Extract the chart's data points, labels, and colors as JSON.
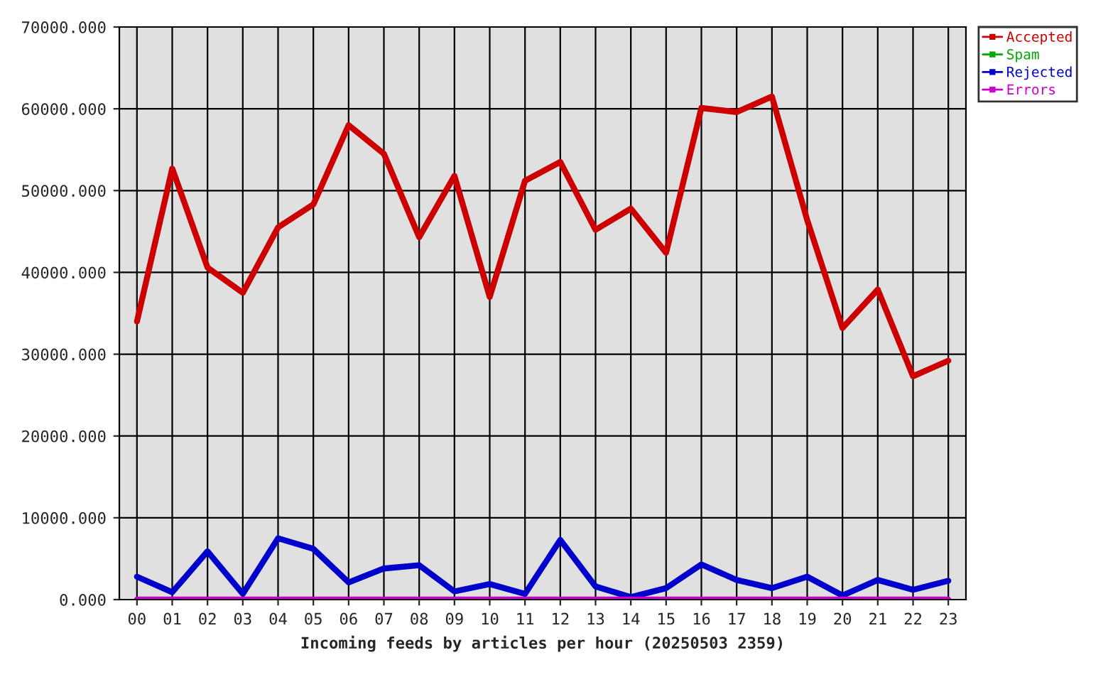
{
  "chart_data": {
    "type": "line",
    "xlabel": "Incoming feeds by articles per hour (20250503 2359)",
    "categories": [
      "00",
      "01",
      "02",
      "03",
      "04",
      "05",
      "06",
      "07",
      "08",
      "09",
      "10",
      "11",
      "12",
      "13",
      "14",
      "15",
      "16",
      "17",
      "18",
      "19",
      "20",
      "21",
      "22",
      "23"
    ],
    "series": [
      {
        "name": "Accepted",
        "color": "#cc0000",
        "values": [
          34000,
          52700,
          40600,
          37500,
          45500,
          48300,
          58000,
          54500,
          44300,
          51800,
          37000,
          51200,
          53500,
          45200,
          47800,
          42400,
          60100,
          59600,
          61500,
          46400,
          33200,
          37900,
          27300,
          29200
        ]
      },
      {
        "name": "Spam",
        "color": "#00aa00",
        "values": [
          null,
          null,
          null,
          null,
          null,
          null,
          null,
          null,
          null,
          null,
          null,
          null,
          null,
          null,
          null,
          null,
          null,
          null,
          null,
          null,
          null,
          null,
          null,
          null
        ]
      },
      {
        "name": "Rejected",
        "color": "#0000cc",
        "values": [
          2800,
          900,
          5900,
          700,
          7500,
          6200,
          2100,
          3800,
          4200,
          1000,
          1900,
          700,
          7300,
          1600,
          300,
          1400,
          4300,
          2400,
          1400,
          2800,
          500,
          2400,
          1200,
          2300
        ]
      },
      {
        "name": "Errors",
        "color": "#cc00cc",
        "values": [
          0,
          0,
          0,
          0,
          0,
          0,
          0,
          0,
          0,
          0,
          0,
          0,
          0,
          0,
          0,
          0,
          0,
          0,
          0,
          0,
          0,
          0,
          0,
          0
        ]
      }
    ],
    "ylim": [
      0,
      70000
    ],
    "yticks": [
      {
        "value": 0,
        "label": "0.000"
      },
      {
        "value": 10000,
        "label": "10000.000"
      },
      {
        "value": 20000,
        "label": "20000.000"
      },
      {
        "value": 30000,
        "label": "30000.000"
      },
      {
        "value": 40000,
        "label": "40000.000"
      },
      {
        "value": 50000,
        "label": "50000.000"
      },
      {
        "value": 60000,
        "label": "60000.000"
      },
      {
        "value": 70000,
        "label": "70000.000"
      }
    ],
    "grid": true,
    "legend": "top right",
    "marker": "none",
    "line_style": "solid"
  }
}
